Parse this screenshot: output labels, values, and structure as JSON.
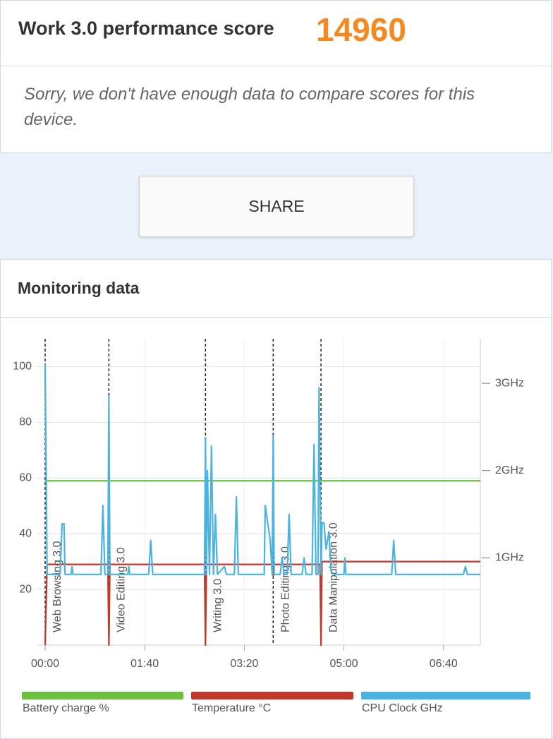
{
  "header": {
    "title": "Work 3.0 performance score",
    "score": "14960"
  },
  "notice": "Sorry, we don't have enough data to compare scores for this device.",
  "share": "SHARE",
  "monitoring": {
    "title": "Monitoring data"
  },
  "chart_data": {
    "type": "line",
    "xlim": [
      0,
      437
    ],
    "xticks": [
      {
        "value": 0,
        "label": "00:00"
      },
      {
        "value": 100,
        "label": "01:40"
      },
      {
        "value": 200,
        "label": "03:20"
      },
      {
        "value": 300,
        "label": "05:00"
      },
      {
        "value": 400,
        "label": "06:40"
      }
    ],
    "ylim": [
      0,
      110
    ],
    "yticks": [
      20,
      40,
      60,
      80,
      100
    ],
    "y2lim": [
      0,
      3.51
    ],
    "y2ticks": [
      {
        "value": 1,
        "label": "1GHz"
      },
      {
        "value": 2,
        "label": "2GHz"
      },
      {
        "value": 3,
        "label": "3GHz"
      }
    ],
    "grid": true,
    "markers": [
      {
        "x": 0,
        "label": "Web Browsing 3.0"
      },
      {
        "x": 64,
        "label": "Video Editing 3.0"
      },
      {
        "x": 161,
        "label": "Writing 3.0"
      },
      {
        "x": 229,
        "label": "Photo Editing 3.0"
      },
      {
        "x": 277,
        "label": "Data Manipulation 3.0"
      }
    ],
    "series": [
      {
        "name": "Battery charge %",
        "color": "#6cbf3f",
        "x": [
          0,
          437
        ],
        "values": [
          59,
          59
        ]
      },
      {
        "name": "Temperature °C",
        "color": "#c0392b",
        "x": [
          0,
          2,
          63,
          64,
          65,
          160,
          161,
          162,
          228,
          229,
          230,
          276,
          277,
          278,
          437
        ],
        "values": [
          0,
          29,
          29,
          0,
          29,
          29,
          0,
          29,
          29,
          25,
          29,
          29,
          0,
          30,
          30
        ]
      },
      {
        "name": "CPU Clock GHz",
        "color": "#4ab3e0",
        "axis": "y2",
        "x": [
          0,
          2,
          15,
          17,
          19,
          20,
          26,
          27,
          28,
          56,
          58,
          60,
          63,
          64,
          65,
          83,
          84,
          85,
          104,
          106,
          108,
          160,
          161,
          162,
          163,
          165,
          167,
          169,
          171,
          173,
          180,
          182,
          190,
          192,
          194,
          220,
          221,
          226,
          228,
          229,
          230,
          236,
          238,
          240,
          243,
          245,
          247,
          258,
          260,
          262,
          268,
          270,
          272,
          274,
          275,
          277,
          278,
          280,
          282,
          285,
          287,
          290,
          300,
          301,
          302,
          348,
          350,
          352,
          420,
          422,
          424,
          437
        ],
        "values": [
          3.22,
          0.81,
          0.81,
          1.39,
          1.39,
          0.81,
          0.81,
          0.9,
          0.81,
          0.81,
          1.6,
          0.81,
          0.81,
          2.85,
          0.81,
          0.81,
          0.9,
          0.81,
          0.81,
          1.2,
          0.81,
          0.81,
          2.38,
          0.81,
          2.0,
          0.81,
          2.28,
          0.81,
          1.5,
          0.81,
          0.9,
          0.81,
          0.81,
          1.7,
          0.81,
          0.81,
          1.6,
          1.2,
          0.81,
          2.4,
          0.81,
          0.81,
          1.0,
          0.81,
          0.81,
          1.5,
          0.81,
          0.81,
          1.0,
          0.81,
          0.81,
          2.3,
          0.81,
          0.81,
          2.95,
          0.81,
          1.4,
          1.4,
          1.1,
          1.3,
          0.85,
          0.81,
          0.81,
          1.0,
          0.81,
          0.81,
          1.2,
          0.81,
          0.81,
          0.9,
          0.81,
          0.81
        ]
      }
    ]
  }
}
